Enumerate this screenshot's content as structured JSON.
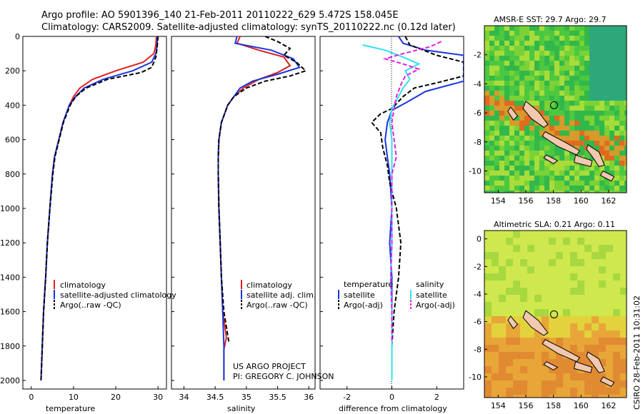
{
  "title": {
    "line1": "Argo profile: AO 5901396_140 21-Feb-2011 20110222_629 5.472S 158.045E",
    "line2": "Climatology: CARS2009. Satellite-adjusted climatology: synTS_20110222.nc (0.12d later)"
  },
  "colors": {
    "climatology": "#e02020",
    "satellite": "#1a35e0",
    "argo": "#000000",
    "satellite_salinity": "#30e0f0",
    "argo_salinity": "#e020e0"
  },
  "depth_axis": {
    "range": [
      0,
      2050
    ],
    "ticks": [
      0,
      200,
      400,
      600,
      800,
      1000,
      1200,
      1400,
      1600,
      1800,
      2000
    ]
  },
  "chart_data": [
    {
      "id": "temperature",
      "type": "line",
      "xlabel": "temperature",
      "xlim": [
        -2,
        32
      ],
      "xticks": [
        0,
        10,
        20,
        30
      ],
      "legend": [
        "climatology",
        "satellite-adjusted climatology",
        "Argo(..raw -QC)"
      ],
      "series": [
        {
          "name": "climatology",
          "color": "#e02020",
          "points": [
            [
              29.6,
              0
            ],
            [
              29.5,
              50
            ],
            [
              29.0,
              100
            ],
            [
              26.5,
              150
            ],
            [
              20,
              200
            ],
            [
              14.5,
              250
            ],
            [
              11.5,
              300
            ],
            [
              10,
              350
            ],
            [
              9,
              400
            ],
            [
              7.5,
              500
            ],
            [
              6.5,
              600
            ],
            [
              5.5,
              700
            ],
            [
              5,
              800
            ],
            [
              4.4,
              1000
            ],
            [
              3.8,
              1200
            ],
            [
              3.4,
              1400
            ],
            [
              2.9,
              1600
            ],
            [
              2.6,
              1800
            ],
            [
              2.3,
              2000
            ]
          ]
        },
        {
          "name": "satellite-adjusted climatology",
          "color": "#1a35e0",
          "points": [
            [
              29.8,
              0
            ],
            [
              29.8,
              50
            ],
            [
              29.5,
              100
            ],
            [
              28.5,
              150
            ],
            [
              24,
              200
            ],
            [
              17,
              250
            ],
            [
              12.5,
              300
            ],
            [
              10.5,
              350
            ],
            [
              9,
              400
            ],
            [
              7.5,
              500
            ],
            [
              6.5,
              600
            ],
            [
              5.5,
              700
            ],
            [
              5,
              800
            ],
            [
              4.4,
              1000
            ],
            [
              3.8,
              1200
            ],
            [
              3.4,
              1400
            ],
            [
              2.9,
              1600
            ],
            [
              2.6,
              1800
            ],
            [
              2.3,
              2000
            ]
          ]
        },
        {
          "name": "Argo(..raw -QC)",
          "color": "#000000",
          "dash": true,
          "points": [
            [
              30.0,
              0
            ],
            [
              29.8,
              60
            ],
            [
              29.5,
              120
            ],
            [
              29,
              150
            ],
            [
              28.5,
              180
            ],
            [
              26,
              210
            ],
            [
              18,
              250
            ],
            [
              13,
              300
            ],
            [
              10.5,
              350
            ],
            [
              9.2,
              400
            ],
            [
              7.6,
              500
            ],
            [
              6.6,
              600
            ],
            [
              5.6,
              700
            ],
            [
              5.1,
              800
            ],
            [
              4.4,
              1000
            ],
            [
              3.8,
              1200
            ],
            [
              3.4,
              1400
            ],
            [
              2.9,
              1600
            ],
            [
              2.6,
              1800
            ],
            [
              2.3,
              2000
            ]
          ]
        }
      ]
    },
    {
      "id": "salinity",
      "type": "line",
      "xlabel": "salinity",
      "xlim": [
        33.8,
        36.1
      ],
      "xticks": [
        34,
        34.5,
        35,
        35.5,
        36
      ],
      "legend": [
        "climatology",
        "satellite adj. clim.",
        "Argo(..raw -QC)"
      ],
      "series": [
        {
          "name": "climatology",
          "color": "#e02020",
          "points": [
            [
              34.9,
              0
            ],
            [
              34.85,
              40
            ],
            [
              35.2,
              80
            ],
            [
              35.6,
              120
            ],
            [
              35.7,
              170
            ],
            [
              35.5,
              210
            ],
            [
              35.2,
              250
            ],
            [
              34.95,
              300
            ],
            [
              34.8,
              350
            ],
            [
              34.7,
              400
            ],
            [
              34.6,
              500
            ],
            [
              34.56,
              600
            ],
            [
              34.55,
              700
            ],
            [
              34.55,
              800
            ],
            [
              34.56,
              1000
            ],
            [
              34.58,
              1200
            ],
            [
              34.6,
              1400
            ],
            [
              34.62,
              1600
            ],
            [
              34.68,
              1750
            ],
            [
              34.64,
              1820
            ],
            [
              34.64,
              2000
            ]
          ]
        },
        {
          "name": "satellite adj. clim.",
          "color": "#1a35e0",
          "points": [
            [
              34.85,
              0
            ],
            [
              34.82,
              40
            ],
            [
              35.4,
              80
            ],
            [
              35.75,
              130
            ],
            [
              35.85,
              180
            ],
            [
              35.5,
              220
            ],
            [
              35.1,
              260
            ],
            [
              34.9,
              300
            ],
            [
              34.8,
              350
            ],
            [
              34.7,
              400
            ],
            [
              34.6,
              500
            ],
            [
              34.56,
              600
            ],
            [
              34.55,
              700
            ],
            [
              34.55,
              800
            ],
            [
              34.56,
              1000
            ],
            [
              34.58,
              1200
            ],
            [
              34.6,
              1400
            ],
            [
              34.62,
              1600
            ],
            [
              34.64,
              1800
            ],
            [
              34.64,
              2000
            ]
          ]
        },
        {
          "name": "Argo(..raw -QC)",
          "color": "#000000",
          "dash": true,
          "points": [
            [
              35.3,
              0
            ],
            [
              35.5,
              30
            ],
            [
              35.7,
              70
            ],
            [
              35.6,
              110
            ],
            [
              35.8,
              150
            ],
            [
              35.95,
              200
            ],
            [
              35.7,
              230
            ],
            [
              35.3,
              260
            ],
            [
              35.0,
              300
            ],
            [
              34.8,
              350
            ],
            [
              34.7,
              400
            ],
            [
              34.6,
              500
            ],
            [
              34.56,
              600
            ],
            [
              34.55,
              700
            ],
            [
              34.55,
              800
            ],
            [
              34.56,
              1000
            ],
            [
              34.58,
              1200
            ],
            [
              34.6,
              1400
            ],
            [
              34.64,
              1600
            ],
            [
              34.72,
              1780
            ]
          ]
        }
      ]
    },
    {
      "id": "difference",
      "type": "line",
      "xlabel": "difference from climatology",
      "xlim": [
        -3.2,
        3.2
      ],
      "xticks": [
        -2,
        0,
        2
      ],
      "legend_header": [
        "temperature",
        "salinity"
      ],
      "legend": [
        "satellite",
        "Argo(-adj)",
        "satellite",
        "Argo(-adj)"
      ],
      "series": [
        {
          "name": "satellite",
          "group": "temperature",
          "color": "#1a35e0",
          "points": [
            [
              0.3,
              0
            ],
            [
              0.5,
              40
            ],
            [
              1.5,
              80
            ],
            [
              3.2,
              110
            ],
            [
              3.2,
              200
            ],
            [
              3.2,
              260
            ],
            [
              1.5,
              320
            ],
            [
              0.7,
              380
            ],
            [
              0,
              430
            ],
            [
              -0.2,
              500
            ],
            [
              -0.3,
              600
            ],
            [
              -0.2,
              700
            ],
            [
              -0.1,
              800
            ],
            [
              0,
              1000
            ],
            [
              -0.1,
              1200
            ],
            [
              0,
              1400
            ],
            [
              0,
              1600
            ],
            [
              0,
              1800
            ],
            [
              0,
              2000
            ]
          ]
        },
        {
          "name": "Argo(-adj)",
          "group": "temperature",
          "color": "#000000",
          "dash": true,
          "points": [
            [
              0.6,
              0
            ],
            [
              0.8,
              50
            ],
            [
              2,
              110
            ],
            [
              3.2,
              150
            ],
            [
              3.2,
              230
            ],
            [
              2,
              270
            ],
            [
              1,
              300
            ],
            [
              0.5,
              350
            ],
            [
              0,
              420
            ],
            [
              -0.5,
              450
            ],
            [
              -0.9,
              500
            ],
            [
              -0.5,
              560
            ],
            [
              -0.4,
              650
            ],
            [
              -0.2,
              750
            ],
            [
              -0.1,
              850
            ],
            [
              0.2,
              1000
            ],
            [
              0.4,
              1200
            ],
            [
              0.3,
              1400
            ],
            [
              0.1,
              1600
            ],
            [
              0,
              1800
            ]
          ]
        },
        {
          "name": "satellite",
          "group": "salinity",
          "color": "#30e0f0",
          "points": [
            [
              -1.3,
              50
            ],
            [
              -0.3,
              80
            ],
            [
              0.5,
              120
            ],
            [
              1.2,
              160
            ],
            [
              0.6,
              200
            ],
            [
              0.8,
              250
            ],
            [
              0.5,
              300
            ],
            [
              0.3,
              350
            ],
            [
              0,
              420
            ],
            [
              -0.1,
              500
            ],
            [
              0,
              600
            ],
            [
              0,
              800
            ],
            [
              0,
              1000
            ],
            [
              0,
              1200
            ],
            [
              -0.05,
              1400
            ],
            [
              0,
              1600
            ],
            [
              0,
              1800
            ],
            [
              0,
              2000
            ]
          ]
        },
        {
          "name": "Argo(-adj)",
          "group": "salinity",
          "color": "#e020e0",
          "dash": true,
          "points": [
            [
              2.2,
              30
            ],
            [
              1.7,
              60
            ],
            [
              0.5,
              100
            ],
            [
              -0.3,
              130
            ],
            [
              0.5,
              160
            ],
            [
              1.2,
              190
            ],
            [
              0.6,
              230
            ],
            [
              0.4,
              280
            ],
            [
              0.2,
              350
            ],
            [
              0.1,
              420
            ],
            [
              0,
              500
            ],
            [
              0.1,
              600
            ],
            [
              0.2,
              700
            ],
            [
              0,
              800
            ],
            [
              0,
              900
            ],
            [
              0,
              1000
            ],
            [
              0,
              1200
            ],
            [
              -0.05,
              1400
            ],
            [
              0,
              1600
            ],
            [
              0,
              1780
            ]
          ]
        }
      ]
    }
  ],
  "project": {
    "line1": "US ARGO PROJECT",
    "line2": "PI: GREGORY C. JOHNSON"
  },
  "maps": [
    {
      "id": "sst",
      "title": "AMSR-E SST: 29.7  Argo: 29.7",
      "xticks": [
        "154",
        "156",
        "158",
        "160",
        "162"
      ],
      "yticks": [
        "-2",
        "-4",
        "-6",
        "-8",
        "-10"
      ],
      "xlim": [
        153,
        163.3
      ],
      "ylim": [
        -11.5,
        0
      ],
      "marker": [
        158.045,
        -5.472
      ],
      "palette": [
        "#32b84a",
        "#4cc840",
        "#7ad236",
        "#a8dc3a",
        "#2ca87a",
        "#d89a2a",
        "#e06a22"
      ]
    },
    {
      "id": "sla",
      "title": "Altimetric SLA: 0.21  Argo: 0.11",
      "xticks": [
        "154",
        "156",
        "158",
        "160",
        "162"
      ],
      "yticks": [
        "0",
        "-2",
        "-4",
        "-6",
        "-8",
        "-10"
      ],
      "xlim": [
        153,
        163.3
      ],
      "ylim": [
        -11.5,
        0.6
      ],
      "marker": [
        158.045,
        -5.472
      ],
      "palette": [
        "#cfe84e",
        "#e4d23c",
        "#e8a638",
        "#e08a32",
        "#a8d840",
        "#d07a2c"
      ]
    }
  ],
  "timestamp": "CSIRO 28-Feb-2011 10:31:02"
}
